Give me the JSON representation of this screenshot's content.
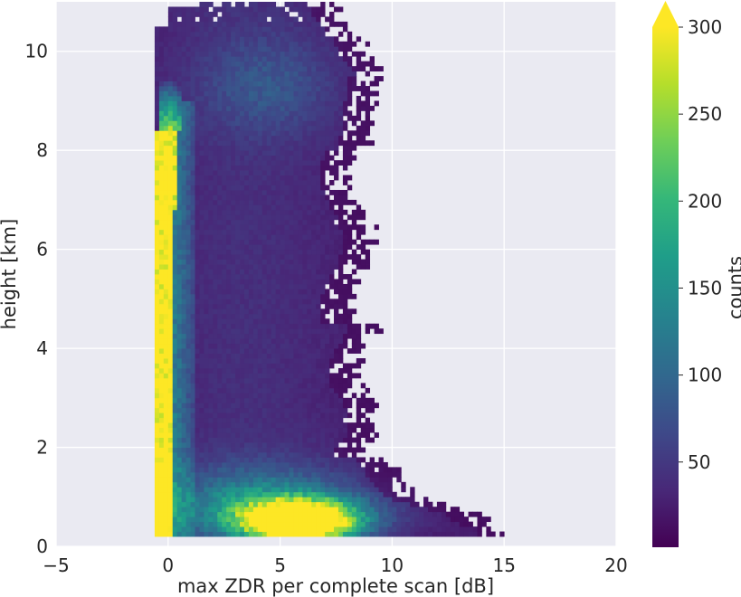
{
  "chart_data": {
    "type": "heatmap",
    "title": "",
    "xlabel": "max ZDR per complete scan [dB]",
    "ylabel": "height [km]",
    "xlim": [
      -5,
      20
    ],
    "ylim": [
      0,
      11
    ],
    "x_ticks": [
      -5,
      0,
      5,
      10,
      15,
      20
    ],
    "y_ticks": [
      0,
      2,
      4,
      6,
      8,
      10
    ],
    "grid": true,
    "colormap": "viridis",
    "colorbar": {
      "label": "counts",
      "ticks": [
        50,
        100,
        150,
        200,
        250,
        300
      ],
      "range": [
        1,
        300
      ],
      "extend": "max"
    },
    "bin_size": {
      "x": 0.2,
      "y": 0.1
    },
    "data_extent": {
      "x": [
        -0.6,
        15
      ],
      "y": [
        0.2,
        11
      ]
    },
    "features": [
      {
        "description_x_range": [
          -0.6,
          0.1
        ],
        "y_range": [
          0.2,
          8.3
        ],
        "counts": ">=300"
      },
      {
        "description_x_range": [
          3.5,
          8.0
        ],
        "y_range": [
          0.2,
          0.9
        ],
        "peak_counts": ">=300"
      },
      {
        "description_x_range": [
          2,
          7
        ],
        "y_range": [
          8.5,
          10
        ],
        "counts": 60
      }
    ]
  },
  "colors": {
    "axes_background": "#eaeaf2",
    "grid": "#ffffff",
    "text": "#262626",
    "viridis_stops": [
      "#440154",
      "#482878",
      "#3e4989",
      "#31688e",
      "#26828e",
      "#1f9e89",
      "#35b779",
      "#6ece58",
      "#b5de2b",
      "#fde725"
    ]
  }
}
